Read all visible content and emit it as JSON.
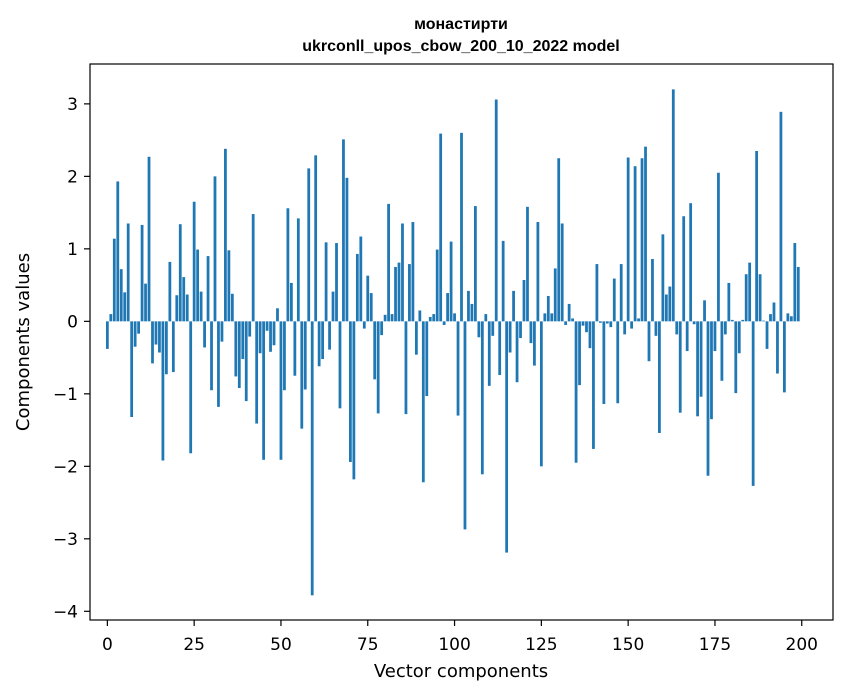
{
  "chart_data": {
    "type": "bar",
    "title": "монастирти",
    "subtitle": "ukrconll_upos_cbow_200_10_2022 model",
    "xlabel": "Vector components",
    "ylabel": "Components values",
    "xlim": [
      -5,
      209
    ],
    "ylim": [
      -4.12,
      3.55
    ],
    "xticks": [
      0,
      25,
      50,
      75,
      100,
      125,
      150,
      175,
      200
    ],
    "yticks": [
      -4,
      -3,
      -2,
      -1,
      0,
      1,
      2,
      3
    ],
    "grid": false,
    "bar_color": "#1f77b4",
    "values": [
      -0.38,
      0.1,
      1.14,
      1.93,
      0.72,
      0.4,
      1.35,
      -1.32,
      -0.35,
      -0.17,
      1.33,
      0.52,
      2.27,
      -0.58,
      -0.32,
      -0.43,
      -1.92,
      -0.73,
      0.82,
      -0.7,
      0.36,
      1.34,
      0.61,
      0.37,
      -1.82,
      1.65,
      0.99,
      0.41,
      -0.36,
      0.9,
      -0.95,
      2.0,
      -1.18,
      -0.28,
      2.38,
      0.98,
      0.38,
      -0.76,
      -0.92,
      -0.52,
      -1.1,
      -0.21,
      1.48,
      -1.41,
      -0.44,
      -1.91,
      -0.13,
      -0.42,
      -0.33,
      0.18,
      -1.91,
      -0.95,
      1.56,
      0.53,
      -0.75,
      1.42,
      -1.48,
      -0.94,
      2.11,
      -3.78,
      2.29,
      -0.62,
      -0.52,
      1.09,
      -0.39,
      0.41,
      1.08,
      -1.2,
      2.51,
      1.98,
      -1.94,
      -2.18,
      0.93,
      1.17,
      -0.1,
      0.63,
      0.39,
      -0.8,
      -1.27,
      -0.19,
      0.09,
      1.62,
      0.1,
      0.75,
      0.81,
      1.35,
      -1.28,
      0.79,
      1.37,
      -0.46,
      0.15,
      -2.22,
      -1.03,
      0.06,
      0.1,
      0.99,
      2.59,
      -0.05,
      0.39,
      1.1,
      0.11,
      -1.3,
      2.6,
      -2.87,
      0.42,
      0.24,
      1.59,
      -0.22,
      -2.11,
      0.1,
      -0.89,
      -0.2,
      3.06,
      -0.74,
      1.11,
      -3.19,
      -0.43,
      0.42,
      -0.84,
      -0.23,
      0.57,
      1.58,
      -0.3,
      -0.61,
      1.37,
      -2.0,
      0.11,
      0.35,
      0.11,
      0.73,
      2.25,
      1.35,
      -0.05,
      0.24,
      0.04,
      -1.95,
      -0.88,
      -0.06,
      -0.15,
      -0.37,
      -1.76,
      0.79,
      -0.02,
      -1.14,
      -0.03,
      -0.08,
      0.59,
      -1.13,
      0.79,
      -0.18,
      2.26,
      -0.1,
      2.14,
      0.04,
      2.25,
      2.41,
      -0.55,
      0.86,
      -0.2,
      -1.54,
      1.2,
      0.37,
      0.48,
      3.2,
      -0.18,
      -1.26,
      1.45,
      -0.41,
      1.63,
      -0.04,
      -1.31,
      -1.04,
      0.29,
      -2.13,
      -1.35,
      -0.41,
      2.05,
      -0.82,
      -0.18,
      0.53,
      0.02,
      -0.99,
      -0.44,
      0.02,
      0.65,
      0.81,
      -2.27,
      2.35,
      0.65,
      0.01,
      -0.38,
      0.1,
      0.26,
      -0.72,
      2.89,
      -0.98,
      0.11,
      0.07,
      1.08,
      0.75
    ]
  }
}
